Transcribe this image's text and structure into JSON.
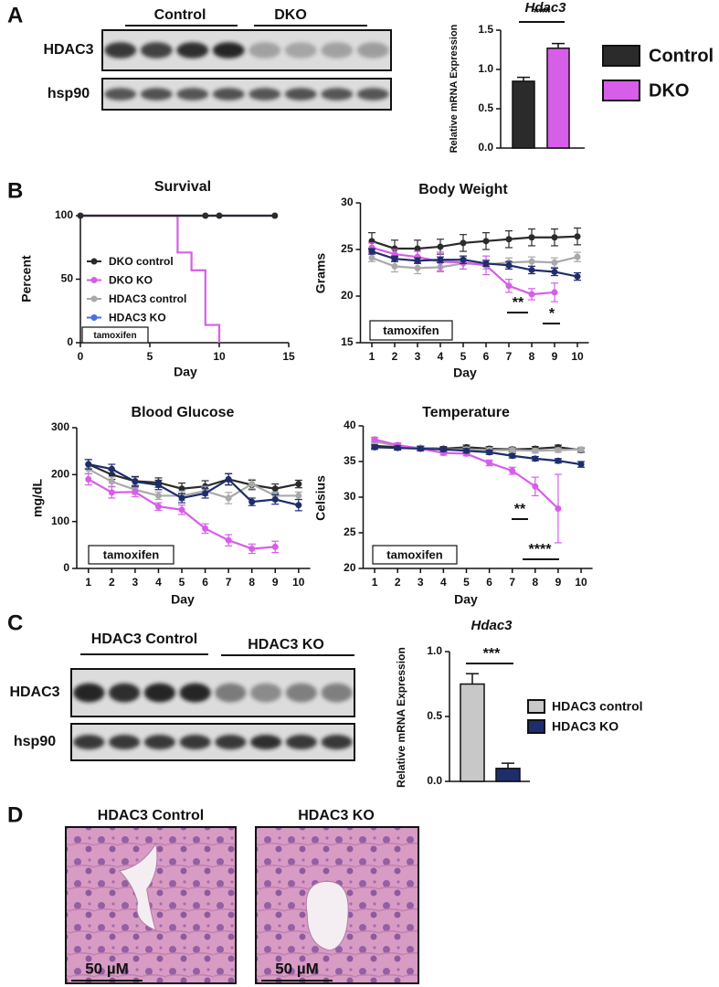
{
  "panel_labels": [
    "A",
    "B",
    "C",
    "D"
  ],
  "blots": [
    {
      "groups": [
        "Control",
        "DKO"
      ],
      "rows": [
        "HDAC3",
        "hsp90"
      ]
    },
    {
      "groups": [
        "HDAC3 Control",
        "HDAC3 KO"
      ],
      "rows": [
        "HDAC3",
        "hsp90"
      ]
    }
  ],
  "chart_data": [
    {
      "type": "bar",
      "title": "Hdac3",
      "ylabel": "Relative mRNA Expression",
      "categories": [
        "Control",
        "DKO"
      ],
      "values": [
        0.85,
        1.27
      ],
      "errors": [
        0.05,
        0.06
      ],
      "colors": [
        "#2b2b2b",
        "#d65ee8"
      ],
      "ylim": [
        0,
        1.5
      ],
      "yticks": [
        {
          "value": 0,
          "label": "0.0"
        },
        {
          "value": 0.5,
          "label": "0.5"
        },
        {
          "value": 1,
          "label": "1.0"
        },
        {
          "value": 1.5,
          "label": "1.5"
        }
      ],
      "annotations": [
        "***"
      ],
      "legend": "right"
    },
    {
      "type": "line",
      "title": "Survival",
      "xlabel": "Day",
      "ylabel": "Percent",
      "xlim": [
        0,
        15
      ],
      "xticks": [
        0,
        5,
        10,
        15
      ],
      "ylim": [
        0,
        100
      ],
      "yticks": [
        0,
        50,
        100
      ],
      "step": true,
      "legend": "center left",
      "annotations": [
        "tamoxifen"
      ],
      "series": [
        {
          "name": "DKO control",
          "color": "#2b2b2b",
          "markers": true,
          "x": [
            0,
            9,
            10,
            14
          ],
          "values": [
            100,
            100,
            100,
            100
          ]
        },
        {
          "name": "DKO KO",
          "color": "#d65ee8",
          "markers": false,
          "x": [
            0,
            7,
            8,
            9,
            10
          ],
          "values": [
            100,
            71,
            57,
            14,
            0
          ]
        },
        {
          "name": "HDAC3 control",
          "color": "#a9a9a9",
          "markers": false,
          "x": [
            0,
            14
          ],
          "values": [
            100,
            100
          ]
        },
        {
          "name": "HDAC3 KO",
          "color": "#4a6fe0",
          "markers": false,
          "x": [
            0,
            14
          ],
          "values": [
            100,
            100
          ]
        }
      ]
    },
    {
      "type": "line",
      "title": "Body Weight",
      "xlabel": "Day",
      "ylabel": "Grams",
      "x": [
        1,
        2,
        3,
        4,
        5,
        6,
        7,
        8,
        9,
        10
      ],
      "xlim": [
        0.5,
        10.5
      ],
      "xticks": [
        1,
        2,
        3,
        4,
        5,
        6,
        7,
        8,
        9,
        10
      ],
      "ylim": [
        15,
        30
      ],
      "yticks": [
        15,
        20,
        25,
        30
      ],
      "annotations": [
        "tamoxifen",
        "**",
        "*"
      ],
      "series": [
        {
          "color": "#2b2b2b",
          "values": [
            25.9,
            25.1,
            25.1,
            25.3,
            25.7,
            25.9,
            26.1,
            26.3,
            26.3,
            26.4
          ],
          "errors": [
            0.9,
            0.9,
            0.9,
            0.8,
            0.9,
            0.9,
            0.9,
            0.9,
            0.9,
            0.9
          ]
        },
        {
          "color": "#a9a9a9",
          "values": [
            24.1,
            23.2,
            23.0,
            23.1,
            23.5,
            23.4,
            23.6,
            23.7,
            23.6,
            24.2
          ],
          "errors": [
            0.4,
            0.6,
            0.6,
            0.5,
            0.6,
            0.5,
            0.5,
            0.5,
            0.5,
            0.5
          ]
        },
        {
          "color": "#d65ee8",
          "values": [
            25.2,
            24.5,
            24.2,
            23.7,
            23.6,
            23.3,
            21.1,
            20.2,
            20.4,
            null
          ],
          "errors": [
            0.5,
            0.5,
            0.6,
            1.0,
            0.7,
            1.0,
            0.7,
            0.6,
            1.0,
            null
          ]
        },
        {
          "color": "#1e2d6b",
          "values": [
            24.8,
            24.0,
            23.8,
            23.9,
            23.9,
            23.5,
            23.3,
            22.8,
            22.6,
            22.1
          ],
          "errors": [
            0.3,
            0.3,
            0.3,
            0.3,
            0.4,
            0.3,
            0.4,
            0.4,
            0.4,
            0.4
          ]
        }
      ]
    },
    {
      "type": "line",
      "title": "Blood Glucose",
      "xlabel": "Day",
      "ylabel": "mg/dL",
      "x": [
        1,
        2,
        3,
        4,
        5,
        6,
        7,
        8,
        9,
        10
      ],
      "xlim": [
        0.5,
        10.5
      ],
      "xticks": [
        1,
        2,
        3,
        4,
        5,
        6,
        7,
        8,
        9,
        10
      ],
      "ylim": [
        0,
        300
      ],
      "yticks": [
        0,
        100,
        200,
        300
      ],
      "annotations": [
        "tamoxifen"
      ],
      "series": [
        {
          "color": "#2b2b2b",
          "values": [
            222,
            200,
            186,
            183,
            170,
            175,
            190,
            178,
            170,
            180
          ],
          "errors": [
            10,
            10,
            10,
            10,
            12,
            12,
            12,
            10,
            10,
            8
          ]
        },
        {
          "color": "#a9a9a9",
          "values": [
            212,
            185,
            168,
            155,
            155,
            165,
            150,
            180,
            155,
            155
          ],
          "errors": [
            10,
            10,
            10,
            8,
            10,
            10,
            12,
            10,
            8,
            8
          ]
        },
        {
          "color": "#d65ee8",
          "values": [
            190,
            162,
            163,
            132,
            125,
            85,
            60,
            42,
            46,
            null
          ],
          "errors": [
            12,
            12,
            10,
            8,
            10,
            10,
            12,
            10,
            12,
            null
          ]
        },
        {
          "color": "#1e2d6b",
          "values": [
            222,
            212,
            185,
            178,
            150,
            160,
            190,
            142,
            147,
            135
          ],
          "errors": [
            10,
            10,
            10,
            10,
            10,
            10,
            12,
            8,
            10,
            12
          ]
        }
      ]
    },
    {
      "type": "line",
      "title": "Temperature",
      "xlabel": "Day",
      "ylabel": "Celsius",
      "x": [
        1,
        2,
        3,
        4,
        5,
        6,
        7,
        8,
        9,
        10
      ],
      "xlim": [
        0.5,
        10.5
      ],
      "xticks": [
        1,
        2,
        3,
        4,
        5,
        6,
        7,
        8,
        9,
        10
      ],
      "ylim": [
        20,
        40
      ],
      "yticks": [
        20,
        25,
        30,
        35,
        40
      ],
      "annotations": [
        "tamoxifen",
        "**",
        "****"
      ],
      "series": [
        {
          "color": "#2b2b2b",
          "values": [
            37.2,
            37.0,
            36.9,
            36.8,
            37.0,
            36.8,
            36.7,
            36.8,
            37.0,
            36.6
          ],
          "errors": [
            0.3,
            0.3,
            0.3,
            0.3,
            0.3,
            0.3,
            0.3,
            0.3,
            0.3,
            0.3
          ]
        },
        {
          "color": "#a9a9a9",
          "values": [
            37.8,
            37.2,
            36.9,
            36.7,
            36.7,
            36.6,
            36.6,
            36.5,
            36.6,
            36.7
          ],
          "errors": [
            0.3,
            0.3,
            0.3,
            0.3,
            0.3,
            0.3,
            0.3,
            0.3,
            0.3,
            0.3
          ]
        },
        {
          "color": "#d65ee8",
          "values": [
            38.1,
            37.3,
            36.8,
            36.2,
            36.1,
            34.8,
            33.7,
            31.5,
            28.4,
            null
          ],
          "errors": [
            0.3,
            0.3,
            0.3,
            0.3,
            0.3,
            0.4,
            0.5,
            1.3,
            4.8,
            null
          ]
        },
        {
          "color": "#1e2d6b",
          "values": [
            37.0,
            36.9,
            36.8,
            36.7,
            36.5,
            36.3,
            35.8,
            35.4,
            35.1,
            34.6
          ],
          "errors": [
            0.3,
            0.3,
            0.3,
            0.3,
            0.3,
            0.3,
            0.3,
            0.3,
            0.3,
            0.4
          ]
        }
      ]
    },
    {
      "type": "bar",
      "title": "Hdac3",
      "ylabel": "Relative mRNA Expression",
      "categories": [
        "HDAC3 control",
        "HDAC3 KO"
      ],
      "values": [
        0.75,
        0.1
      ],
      "errors": [
        0.08,
        0.04
      ],
      "colors": [
        "#c8c8c8",
        "#1e2d6b"
      ],
      "ylim": [
        0,
        1
      ],
      "yticks": [
        {
          "value": 0,
          "label": "0.0"
        },
        {
          "value": 0.5,
          "label": "0.5"
        },
        {
          "value": 1,
          "label": "1.0"
        }
      ],
      "annotations": [
        "***"
      ],
      "legend": "right"
    }
  ],
  "histology": [
    {
      "title": "HDAC3 Control",
      "scale_bar": "50 µM"
    },
    {
      "title": "HDAC3 KO",
      "scale_bar": "50 µM"
    }
  ]
}
